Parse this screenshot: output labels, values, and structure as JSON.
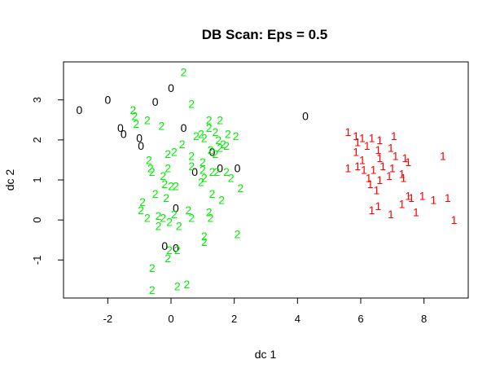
{
  "chart_data": {
    "type": "scatter",
    "title": "DB Scan: Eps = 0.5",
    "xlabel": "dc 1",
    "ylabel": "dc 2",
    "xlim": [
      -3.4,
      9.4
    ],
    "ylim": [
      -1.95,
      3.95
    ],
    "xticks": [
      -2,
      0,
      2,
      4,
      6,
      8
    ],
    "yticks": [
      -1,
      0,
      1,
      2,
      3
    ],
    "grid": false,
    "legend": "none",
    "marker": "cluster label text",
    "colors": {
      "0": "#000000",
      "1": "#ff0000",
      "2": "#00ee00"
    },
    "series": [
      {
        "label": "0",
        "points": [
          [
            -2.9,
            2.75
          ],
          [
            -2.0,
            3.0
          ],
          [
            -1.6,
            2.3
          ],
          [
            -1.5,
            2.15
          ],
          [
            -1.0,
            2.05
          ],
          [
            -0.95,
            1.85
          ],
          [
            -0.5,
            2.95
          ],
          [
            0.0,
            3.3
          ],
          [
            0.4,
            2.3
          ],
          [
            1.3,
            1.7
          ],
          [
            0.75,
            1.2
          ],
          [
            1.55,
            1.3
          ],
          [
            2.1,
            1.3
          ],
          [
            0.15,
            0.3
          ],
          [
            -0.2,
            -0.65
          ],
          [
            0.15,
            -0.7
          ],
          [
            4.25,
            2.6
          ]
        ]
      },
      {
        "label": "1",
        "points": [
          [
            5.6,
            2.2
          ],
          [
            5.85,
            2.1
          ],
          [
            6.05,
            2.05
          ],
          [
            6.35,
            2.05
          ],
          [
            6.6,
            2.0
          ],
          [
            7.05,
            2.1
          ],
          [
            5.9,
            1.95
          ],
          [
            6.2,
            1.85
          ],
          [
            6.55,
            1.75
          ],
          [
            6.95,
            1.8
          ],
          [
            5.85,
            1.7
          ],
          [
            6.05,
            1.5
          ],
          [
            6.6,
            1.55
          ],
          [
            7.1,
            1.6
          ],
          [
            7.4,
            1.55
          ],
          [
            7.5,
            1.45
          ],
          [
            8.6,
            1.6
          ],
          [
            5.6,
            1.3
          ],
          [
            5.9,
            1.35
          ],
          [
            6.1,
            1.25
          ],
          [
            6.4,
            1.25
          ],
          [
            6.7,
            1.35
          ],
          [
            7.0,
            1.3
          ],
          [
            7.3,
            1.15
          ],
          [
            6.25,
            1.05
          ],
          [
            6.6,
            1.0
          ],
          [
            6.9,
            1.1
          ],
          [
            6.3,
            0.9
          ],
          [
            6.5,
            0.75
          ],
          [
            7.35,
            1.05
          ],
          [
            7.5,
            0.6
          ],
          [
            7.6,
            0.55
          ],
          [
            7.95,
            0.6
          ],
          [
            7.3,
            0.4
          ],
          [
            6.35,
            0.25
          ],
          [
            6.55,
            0.35
          ],
          [
            6.95,
            0.15
          ],
          [
            7.75,
            0.2
          ],
          [
            8.3,
            0.5
          ],
          [
            8.75,
            0.55
          ],
          [
            8.95,
            0.0
          ]
        ]
      },
      {
        "label": "2",
        "points": [
          [
            0.4,
            3.7
          ],
          [
            -1.2,
            2.75
          ],
          [
            -1.15,
            2.6
          ],
          [
            -1.1,
            2.4
          ],
          [
            -0.75,
            2.5
          ],
          [
            -0.3,
            2.35
          ],
          [
            0.65,
            2.9
          ],
          [
            1.2,
            2.5
          ],
          [
            1.55,
            2.5
          ],
          [
            1.2,
            2.3
          ],
          [
            1.4,
            2.2
          ],
          [
            1.8,
            2.15
          ],
          [
            2.05,
            2.1
          ],
          [
            0.8,
            2.1
          ],
          [
            0.95,
            2.15
          ],
          [
            1.05,
            2.05
          ],
          [
            1.5,
            2.0
          ],
          [
            1.65,
            1.9
          ],
          [
            0.35,
            1.9
          ],
          [
            1.55,
            1.8
          ],
          [
            1.75,
            1.85
          ],
          [
            1.25,
            1.75
          ],
          [
            1.4,
            1.65
          ],
          [
            -0.1,
            1.65
          ],
          [
            0.1,
            1.7
          ],
          [
            0.65,
            1.6
          ],
          [
            1.0,
            1.45
          ],
          [
            -0.7,
            1.5
          ],
          [
            -0.65,
            1.3
          ],
          [
            -0.6,
            1.2
          ],
          [
            -0.1,
            1.3
          ],
          [
            0.65,
            1.35
          ],
          [
            1.0,
            1.25
          ],
          [
            1.3,
            1.2
          ],
          [
            1.45,
            1.2
          ],
          [
            1.75,
            1.2
          ],
          [
            1.9,
            1.05
          ],
          [
            -0.25,
            1.1
          ],
          [
            -0.2,
            0.9
          ],
          [
            0.0,
            0.85
          ],
          [
            0.15,
            0.85
          ],
          [
            0.95,
            0.95
          ],
          [
            1.05,
            1.05
          ],
          [
            2.2,
            0.8
          ],
          [
            -0.15,
            0.55
          ],
          [
            -0.9,
            0.45
          ],
          [
            -0.95,
            0.25
          ],
          [
            -0.75,
            0.05
          ],
          [
            -0.5,
            0.65
          ],
          [
            -0.4,
            0.1
          ],
          [
            -0.25,
            0.05
          ],
          [
            0.1,
            0.15
          ],
          [
            0.55,
            0.25
          ],
          [
            0.65,
            0.05
          ],
          [
            1.3,
            0.65
          ],
          [
            1.6,
            0.5
          ],
          [
            1.2,
            0.2
          ],
          [
            1.25,
            0.05
          ],
          [
            -0.4,
            -0.15
          ],
          [
            -0.05,
            -0.05
          ],
          [
            0.25,
            -0.15
          ],
          [
            1.05,
            -0.4
          ],
          [
            1.05,
            -0.55
          ],
          [
            2.1,
            -0.35
          ],
          [
            -0.05,
            -0.75
          ],
          [
            0.2,
            -0.75
          ],
          [
            -0.1,
            -0.95
          ],
          [
            -0.6,
            -1.2
          ],
          [
            -0.6,
            -1.75
          ],
          [
            0.2,
            -1.65
          ],
          [
            0.5,
            -1.6
          ]
        ]
      }
    ]
  }
}
